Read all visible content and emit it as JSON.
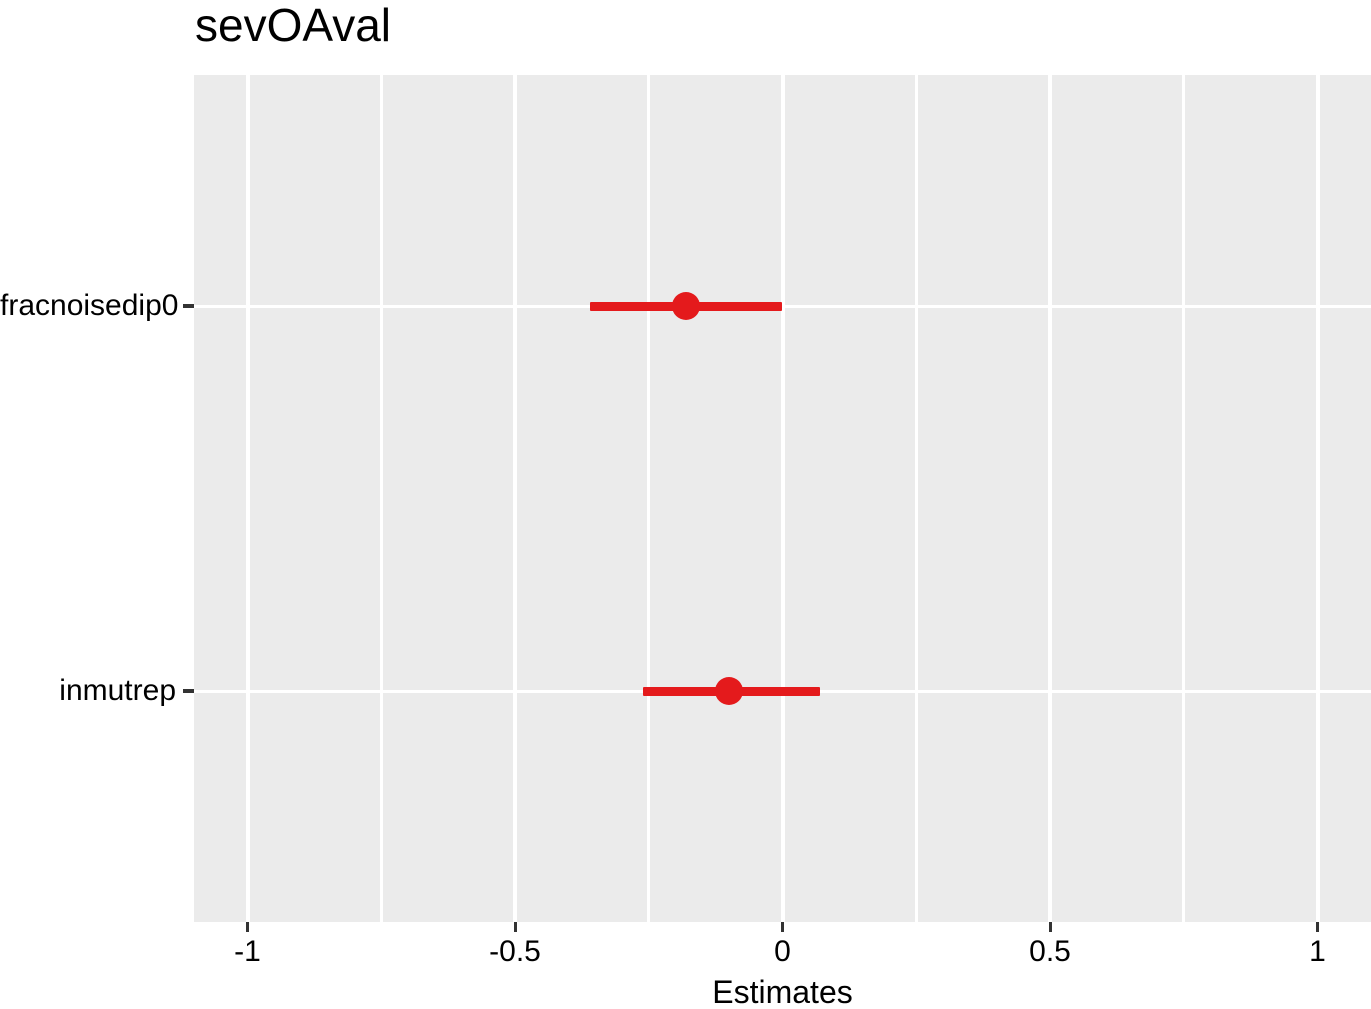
{
  "title": "sevOAval",
  "chart_data": {
    "type": "scatter",
    "variant": "forest-pointrange",
    "title": "sevOAval",
    "xlabel": "Estimates",
    "ylabel": "",
    "categories": [
      "fracnoisedip0",
      "inmutrep"
    ],
    "series": [
      {
        "name": "estimates",
        "points": [
          {
            "label": "fracnoisedip0",
            "estimate": -0.18,
            "ci_low": -0.36,
            "ci_high": 0.0
          },
          {
            "label": "inmutrep",
            "estimate": -0.1,
            "ci_low": -0.26,
            "ci_high": 0.07
          }
        ]
      }
    ],
    "xlim": [
      -1.1,
      1.1
    ],
    "x_ticks": [
      -1,
      -0.5,
      0,
      0.5,
      1
    ],
    "x_tick_labels": [
      "-1",
      "-0.5",
      "0",
      "0.5",
      "1"
    ],
    "x_minor_ticks": [
      -0.75,
      -0.25,
      0.25,
      0.75
    ],
    "grid": true,
    "legend": false
  },
  "style": {
    "point_color": "#e41a1c",
    "panel_bg": "#ebebeb",
    "grid_color": "#ffffff",
    "text_color": "#000000",
    "tick_color": "#333333"
  }
}
